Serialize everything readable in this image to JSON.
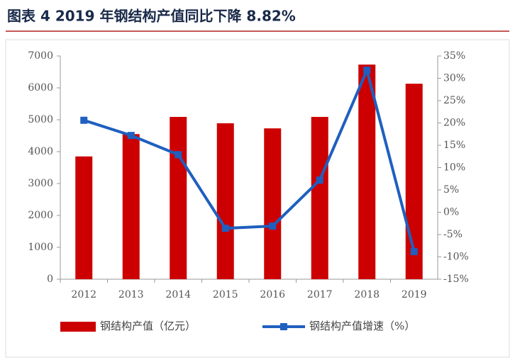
{
  "chart_data": {
    "type": "bar",
    "title": "图表 4 2019 年钢结构产值同比下降 8.82%",
    "categories": [
      "2012",
      "2013",
      "2014",
      "2015",
      "2016",
      "2017",
      "2018",
      "2019"
    ],
    "series": [
      {
        "name": "钢结构产值（亿元）",
        "type": "bar",
        "color": "#cc0000",
        "values": [
          3850,
          4550,
          5090,
          4890,
          4730,
          5090,
          6730,
          6130
        ]
      },
      {
        "name": "钢结构产值增速（%）",
        "type": "line",
        "axis": "y2",
        "color": "#1f5fbf",
        "values": [
          20.6,
          17.2,
          12.9,
          -3.6,
          -3.1,
          7.2,
          31.8,
          -8.82
        ]
      }
    ],
    "ylim": [
      0,
      7000
    ],
    "yticks": [
      0,
      1000,
      2000,
      3000,
      4000,
      5000,
      6000,
      7000
    ],
    "y2lim": [
      -15,
      35
    ],
    "y2ticks": [
      {
        "value": -15,
        "label": "-15%"
      },
      {
        "value": -10,
        "label": "-10%"
      },
      {
        "value": -5,
        "label": "-5%"
      },
      {
        "value": 0,
        "label": "0%"
      },
      {
        "value": 5,
        "label": "5%"
      },
      {
        "value": 10,
        "label": "10%"
      },
      {
        "value": 15,
        "label": "15%"
      },
      {
        "value": 20,
        "label": "20%"
      },
      {
        "value": 25,
        "label": "25%"
      },
      {
        "value": 30,
        "label": "30%"
      },
      {
        "value": 35,
        "label": "35%"
      }
    ]
  }
}
